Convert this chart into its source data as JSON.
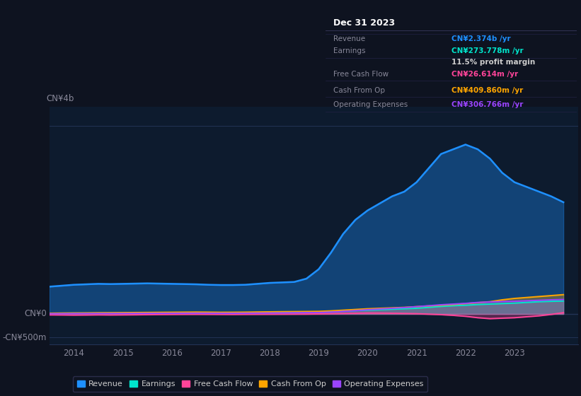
{
  "background_color": "#0e1320",
  "plot_bg_color": "#0d1b2e",
  "title": "Dec 31 2023",
  "ylabel_top": "CN¥4b",
  "ylabel_zero": "CN¥0",
  "ylabel_neg": "-CN¥500m",
  "xlim": [
    2013.5,
    2024.3
  ],
  "ylim": [
    -650,
    4400
  ],
  "xticks": [
    2014,
    2015,
    2016,
    2017,
    2018,
    2019,
    2020,
    2021,
    2022,
    2023
  ],
  "colors": {
    "revenue": "#1e90ff",
    "earnings": "#00e5cc",
    "free_cash_flow": "#ff4499",
    "cash_from_op": "#ffa500",
    "operating_expenses": "#9944ff"
  },
  "x_years": [
    2013.5,
    2013.75,
    2014.0,
    2014.25,
    2014.5,
    2014.75,
    2015.0,
    2015.25,
    2015.5,
    2015.75,
    2016.0,
    2016.25,
    2016.5,
    2016.75,
    2017.0,
    2017.25,
    2017.5,
    2017.75,
    2018.0,
    2018.25,
    2018.5,
    2018.75,
    2019.0,
    2019.25,
    2019.5,
    2019.75,
    2020.0,
    2020.25,
    2020.5,
    2020.75,
    2021.0,
    2021.25,
    2021.5,
    2021.75,
    2022.0,
    2022.25,
    2022.5,
    2022.75,
    2023.0,
    2023.25,
    2023.5,
    2023.75,
    2024.0
  ],
  "revenue": [
    580,
    600,
    620,
    630,
    640,
    635,
    640,
    645,
    650,
    645,
    640,
    635,
    630,
    620,
    615,
    615,
    620,
    640,
    660,
    670,
    680,
    750,
    950,
    1300,
    1700,
    2000,
    2200,
    2350,
    2500,
    2600,
    2800,
    3100,
    3400,
    3500,
    3600,
    3500,
    3300,
    3000,
    2800,
    2700,
    2600,
    2500,
    2374
  ],
  "earnings": [
    15,
    16,
    18,
    17,
    18,
    19,
    20,
    22,
    24,
    25,
    26,
    27,
    28,
    27,
    26,
    27,
    28,
    30,
    32,
    34,
    36,
    38,
    40,
    50,
    60,
    70,
    80,
    90,
    100,
    110,
    120,
    140,
    160,
    175,
    185,
    200,
    210,
    220,
    230,
    245,
    260,
    268,
    274
  ],
  "free_cash_flow": [
    -20,
    -22,
    -25,
    -23,
    -20,
    -22,
    -20,
    -18,
    -15,
    -12,
    -10,
    -8,
    -7,
    -8,
    -9,
    -10,
    -8,
    -7,
    -6,
    -5,
    -4,
    -3,
    0,
    5,
    10,
    15,
    20,
    18,
    15,
    10,
    5,
    -5,
    -15,
    -30,
    -50,
    -80,
    -100,
    -90,
    -80,
    -60,
    -40,
    -10,
    27
  ],
  "cash_from_op": [
    15,
    18,
    20,
    22,
    25,
    26,
    28,
    30,
    32,
    34,
    36,
    38,
    40,
    38,
    35,
    36,
    38,
    42,
    45,
    48,
    50,
    52,
    55,
    65,
    80,
    95,
    110,
    120,
    130,
    140,
    155,
    170,
    185,
    200,
    220,
    240,
    260,
    300,
    330,
    350,
    370,
    390,
    410
  ],
  "operating_expenses": [
    5,
    6,
    8,
    9,
    10,
    10,
    11,
    12,
    13,
    14,
    15,
    16,
    17,
    16,
    15,
    15,
    16,
    18,
    20,
    22,
    25,
    28,
    30,
    40,
    55,
    70,
    90,
    105,
    120,
    135,
    155,
    175,
    195,
    210,
    225,
    245,
    255,
    265,
    270,
    280,
    290,
    300,
    307
  ],
  "info_box_rows": [
    {
      "label": "Revenue",
      "value": "CN¥2.374b /yr",
      "value_color": "#1e90ff"
    },
    {
      "label": "Earnings",
      "value": "CN¥273.778m /yr",
      "value_color": "#00e5cc"
    },
    {
      "label": "",
      "value": "11.5% profit margin",
      "value_color": "#cccccc"
    },
    {
      "label": "Free Cash Flow",
      "value": "CN¥26.614m /yr",
      "value_color": "#ff4499"
    },
    {
      "label": "Cash From Op",
      "value": "CN¥409.860m /yr",
      "value_color": "#ffa500"
    },
    {
      "label": "Operating Expenses",
      "value": "CN¥306.766m /yr",
      "value_color": "#9944ff"
    }
  ],
  "legend_items": [
    {
      "label": "Revenue",
      "color": "#1e90ff"
    },
    {
      "label": "Earnings",
      "color": "#00e5cc"
    },
    {
      "label": "Free Cash Flow",
      "color": "#ff4499"
    },
    {
      "label": "Cash From Op",
      "color": "#ffa500"
    },
    {
      "label": "Operating Expenses",
      "color": "#9944ff"
    }
  ]
}
